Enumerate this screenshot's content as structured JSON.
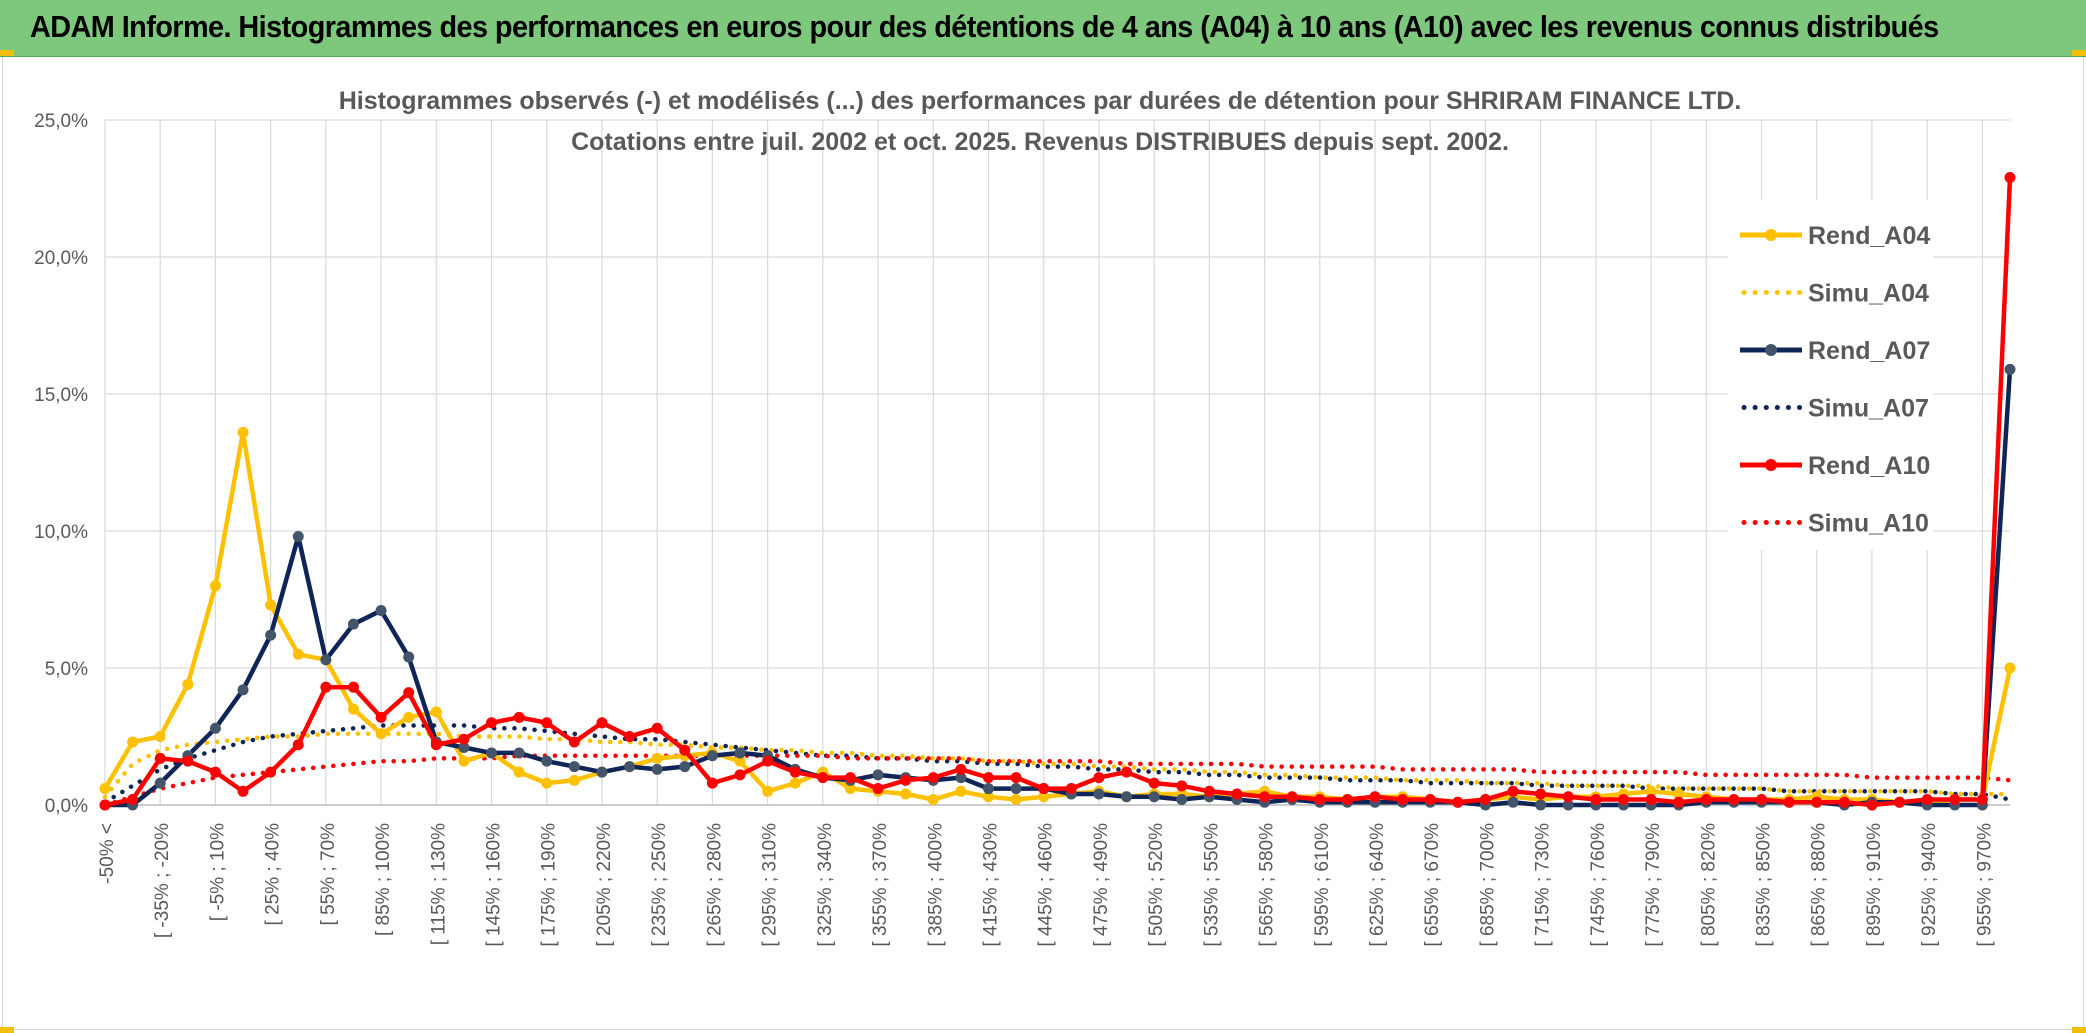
{
  "page": {
    "title": "ADAM Informe. Histogrammes des performances en euros pour des détentions de 4 ans (A04) à 10 ans (A10) avec les revenus connus distribués"
  },
  "chart_data": {
    "type": "line",
    "title": "Histogrammes observés (-) et modélisés (...) des performances par durées de détention pour SHRIRAM FINANCE LTD.",
    "subtitle": "Cotations entre juil. 2002 et oct. 2025. Revenus DISTRIBUES depuis sept. 2002.",
    "xlabel": "",
    "ylabel": "",
    "ylim": [
      0,
      25
    ],
    "yticks": [
      0,
      5,
      10,
      15,
      20,
      25
    ],
    "ytick_labels": [
      "0,0%",
      "5,0%",
      "10,0%",
      "15,0%",
      "20,0%",
      "25,0%"
    ],
    "grid": true,
    "legend_position": "top-right",
    "x_tick_labels": [
      "-50% <",
      "[ -35% ; -20%",
      "[ -5% ; 10%",
      "[ 25% ; 40%",
      "[ 55% ; 70%",
      "[ 85% ; 100%",
      "[ 115% ; 130%",
      "[ 145% ; 160%",
      "[ 175% ; 190%",
      "[ 205% ; 220%",
      "[ 235% ; 250%",
      "[ 265% ; 280%",
      "[ 295% ; 310%",
      "[ 325% ; 340%",
      "[ 355% ; 370%",
      "[ 385% ; 400%",
      "[ 415% ; 430%",
      "[ 445% ; 460%",
      "[ 475% ; 490%",
      "[ 505% ; 520%",
      "[ 535% ; 550%",
      "[ 565% ; 580%",
      "[ 595% ; 610%",
      "[ 625% ; 640%",
      "[ 655% ; 670%",
      "[ 685% ; 700%",
      "[ 715% ; 730%",
      "[ 745% ; 760%",
      "[ 775% ; 790%",
      "[ 805% ; 820%",
      "[ 835% ; 850%",
      "[ 865% ; 880%",
      "[ 895% ; 910%",
      "[ 925% ; 940%",
      "[ 955% ; 970%"
    ],
    "series": [
      {
        "name": "Rend_A04",
        "style": "solid",
        "color": "#FFC000",
        "values": [
          0.6,
          2.3,
          2.5,
          4.4,
          8.0,
          13.6,
          7.3,
          5.5,
          5.3,
          3.5,
          2.6,
          3.2,
          3.4,
          1.6,
          1.9,
          1.2,
          0.8,
          0.9,
          1.2,
          1.4,
          1.7,
          1.8,
          1.9,
          1.6,
          0.5,
          0.8,
          1.2,
          0.6,
          0.5,
          0.4,
          0.2,
          0.5,
          0.3,
          0.2,
          0.3,
          0.4,
          0.5,
          0.3,
          0.4,
          0.4,
          0.3,
          0.4,
          0.5,
          0.3,
          0.3,
          0.2,
          0.3,
          0.3,
          0.2,
          0.1,
          0.2,
          0.3,
          0.2,
          0.3,
          0.3,
          0.4,
          0.5,
          0.4,
          0.3,
          0.2,
          0.2,
          0.2,
          0.3,
          0.2,
          0.2,
          0.1,
          0.1,
          0.2,
          0.2,
          5.0
        ]
      },
      {
        "name": "Simu_A04",
        "style": "dotted",
        "color": "#FFC000",
        "values": [
          0.3,
          1.5,
          2.0,
          2.2,
          2.3,
          2.4,
          2.5,
          2.5,
          2.6,
          2.6,
          2.6,
          2.6,
          2.6,
          2.5,
          2.5,
          2.5,
          2.4,
          2.4,
          2.3,
          2.3,
          2.2,
          2.2,
          2.1,
          2.1,
          2.0,
          2.0,
          1.9,
          1.9,
          1.8,
          1.8,
          1.7,
          1.7,
          1.6,
          1.6,
          1.5,
          1.5,
          1.4,
          1.4,
          1.3,
          1.3,
          1.2,
          1.2,
          1.1,
          1.1,
          1.0,
          1.0,
          1.0,
          0.9,
          0.9,
          0.9,
          0.8,
          0.8,
          0.8,
          0.7,
          0.7,
          0.7,
          0.7,
          0.6,
          0.6,
          0.6,
          0.6,
          0.5,
          0.5,
          0.5,
          0.5,
          0.5,
          0.5,
          0.4,
          0.4,
          0.4
        ]
      },
      {
        "name": "Rend_A07",
        "style": "solid",
        "color": "#0F2557",
        "values": [
          0.0,
          0.0,
          0.8,
          1.8,
          2.8,
          4.2,
          6.2,
          9.8,
          5.3,
          6.6,
          7.1,
          5.4,
          2.3,
          2.1,
          1.9,
          1.9,
          1.6,
          1.4,
          1.2,
          1.4,
          1.3,
          1.4,
          1.8,
          1.9,
          1.8,
          1.3,
          1.0,
          0.9,
          1.1,
          1.0,
          0.9,
          1.0,
          0.6,
          0.6,
          0.6,
          0.4,
          0.4,
          0.3,
          0.3,
          0.2,
          0.3,
          0.2,
          0.1,
          0.2,
          0.1,
          0.1,
          0.1,
          0.1,
          0.1,
          0.1,
          0.0,
          0.1,
          0.0,
          0.0,
          0.0,
          0.0,
          0.0,
          0.0,
          0.1,
          0.1,
          0.1,
          0.1,
          0.1,
          0.0,
          0.1,
          0.1,
          0.0,
          0.0,
          0.0,
          15.9
        ]
      },
      {
        "name": "Simu_A07",
        "style": "dotted",
        "color": "#0F2557",
        "values": [
          0.1,
          0.7,
          1.3,
          1.7,
          2.0,
          2.3,
          2.5,
          2.6,
          2.7,
          2.8,
          2.9,
          2.9,
          2.9,
          2.9,
          2.8,
          2.8,
          2.7,
          2.6,
          2.5,
          2.4,
          2.4,
          2.3,
          2.2,
          2.1,
          2.0,
          1.9,
          1.8,
          1.8,
          1.7,
          1.7,
          1.6,
          1.6,
          1.5,
          1.5,
          1.4,
          1.4,
          1.3,
          1.3,
          1.2,
          1.2,
          1.1,
          1.1,
          1.0,
          1.0,
          1.0,
          0.9,
          0.9,
          0.9,
          0.8,
          0.8,
          0.8,
          0.8,
          0.7,
          0.7,
          0.7,
          0.7,
          0.6,
          0.6,
          0.6,
          0.6,
          0.6,
          0.5,
          0.5,
          0.5,
          0.5,
          0.5,
          0.5,
          0.4,
          0.4,
          0.2
        ]
      },
      {
        "name": "Rend_A10",
        "style": "solid",
        "color": "#FF0000",
        "values": [
          0.0,
          0.2,
          1.7,
          1.6,
          1.2,
          0.5,
          1.2,
          2.2,
          4.3,
          4.3,
          3.2,
          4.1,
          2.2,
          2.4,
          3.0,
          3.2,
          3.0,
          2.3,
          3.0,
          2.5,
          2.8,
          2.0,
          0.8,
          1.1,
          1.6,
          1.2,
          1.0,
          1.0,
          0.6,
          0.9,
          1.0,
          1.3,
          1.0,
          1.0,
          0.6,
          0.6,
          1.0,
          1.2,
          0.8,
          0.7,
          0.5,
          0.4,
          0.3,
          0.3,
          0.2,
          0.2,
          0.3,
          0.2,
          0.2,
          0.1,
          0.2,
          0.5,
          0.4,
          0.3,
          0.2,
          0.2,
          0.2,
          0.1,
          0.2,
          0.2,
          0.2,
          0.1,
          0.1,
          0.1,
          0.0,
          0.1,
          0.2,
          0.2,
          0.2,
          22.9
        ]
      },
      {
        "name": "Simu_A10",
        "style": "dotted",
        "color": "#FF0000",
        "values": [
          0.0,
          0.3,
          0.6,
          0.8,
          1.0,
          1.1,
          1.2,
          1.3,
          1.4,
          1.5,
          1.6,
          1.6,
          1.7,
          1.7,
          1.7,
          1.8,
          1.8,
          1.8,
          1.8,
          1.8,
          1.8,
          1.8,
          1.8,
          1.8,
          1.8,
          1.8,
          1.8,
          1.7,
          1.7,
          1.7,
          1.7,
          1.7,
          1.6,
          1.6,
          1.6,
          1.6,
          1.6,
          1.5,
          1.5,
          1.5,
          1.5,
          1.5,
          1.4,
          1.4,
          1.4,
          1.4,
          1.4,
          1.3,
          1.3,
          1.3,
          1.3,
          1.3,
          1.2,
          1.2,
          1.2,
          1.2,
          1.2,
          1.2,
          1.1,
          1.1,
          1.1,
          1.1,
          1.1,
          1.1,
          1.0,
          1.0,
          1.0,
          1.0,
          1.0,
          0.9
        ]
      }
    ]
  }
}
